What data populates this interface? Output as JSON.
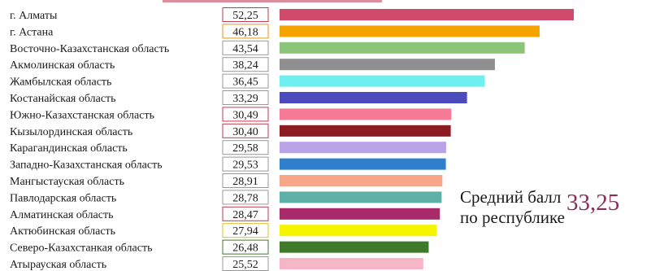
{
  "chart_data": {
    "type": "bar",
    "orientation": "horizontal",
    "categories": [
      "г. Алматы",
      "г. Астана",
      "Восточно-Казахстанская область",
      "Акмолинская область",
      "Жамбылская область",
      "Костанайская область",
      "Южно-Казахстанская область",
      "Кызылординская область",
      "Карагандинская область",
      "Западно-Казахстанская область",
      "Мангыстауская область",
      "Павлодарская область",
      "Алматинская область",
      "Актюбинская область",
      "Северо-Казахстанкая область",
      "Атырауская область"
    ],
    "values": [
      52.25,
      46.18,
      43.54,
      38.24,
      36.45,
      33.29,
      30.49,
      30.4,
      29.58,
      29.53,
      28.91,
      28.78,
      28.47,
      27.94,
      26.48,
      25.52
    ],
    "value_labels": [
      "52,25",
      "46,18",
      "43,54",
      "38,24",
      "36,45",
      "33,29",
      "30,49",
      "30,40",
      "29,58",
      "29,53",
      "28,91",
      "28,78",
      "28,47",
      "27,94",
      "26,48",
      "25,52"
    ],
    "colors": [
      "#cf4a6b",
      "#f5a300",
      "#8cc47a",
      "#8f8f8f",
      "#6ff0f0",
      "#4b4bbd",
      "#f57a95",
      "#8a1c22",
      "#b9a2e8",
      "#2f7fcc",
      "#f7a68a",
      "#5fb0a6",
      "#a82a6a",
      "#f5f500",
      "#3f7a2a",
      "#f7b6c8"
    ],
    "box_border_colors": [
      "#c23a52",
      "#e09a1a",
      "#999999",
      "#999999",
      "#999999",
      "#999999",
      "#c23a52",
      "#c23a52",
      "#999999",
      "#999999",
      "#999999",
      "#999999",
      "#c23a52",
      "#e0c020",
      "#3f7a2a",
      "#999999"
    ],
    "xlim": [
      0,
      60
    ],
    "grid": false,
    "legend": "none"
  },
  "average": {
    "label_line1": "Средний балл",
    "label_line2": "по республике",
    "value": "33,25",
    "color": "#8c2b5a"
  },
  "header_fragment_color": "#c0324f"
}
